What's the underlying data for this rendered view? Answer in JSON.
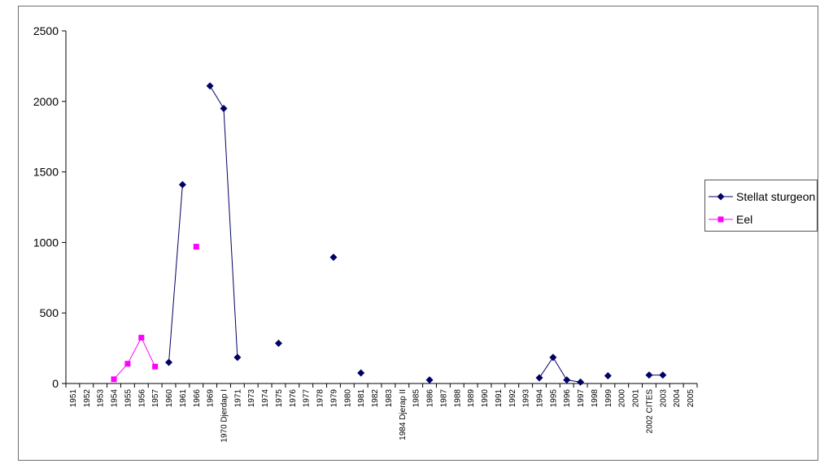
{
  "chart_data": {
    "type": "line",
    "categories": [
      "1951",
      "1952",
      "1953",
      "1954",
      "1955",
      "1956",
      "1957",
      "1960",
      "1961",
      "1966",
      "1969",
      "1970 Djerdap I",
      "1971",
      "1973",
      "1974",
      "1975",
      "1976",
      "1977",
      "1978",
      "1979",
      "1980",
      "1981",
      "1982",
      "1983",
      "1984 Djerap II",
      "1985",
      "1986",
      "1987",
      "1988",
      "1989",
      "1990",
      "1991",
      "1992",
      "1993",
      "1994",
      "1995",
      "1996",
      "1997",
      "1998",
      "1999",
      "2000",
      "2001",
      "2002 CITES",
      "2003",
      "2004",
      "2005"
    ],
    "ylim": [
      0,
      2500
    ],
    "yticks": [
      0,
      500,
      1000,
      1500,
      2000,
      2500
    ],
    "grid": false,
    "legend_position": "right",
    "series": [
      {
        "name": "Stellat sturgeon",
        "color": "#000066",
        "marker": "diamond",
        "values": [
          null,
          null,
          null,
          null,
          null,
          null,
          null,
          150,
          1410,
          null,
          2110,
          1950,
          185,
          null,
          null,
          285,
          null,
          null,
          null,
          895,
          null,
          75,
          null,
          null,
          null,
          null,
          25,
          null,
          null,
          null,
          null,
          null,
          null,
          null,
          40,
          185,
          25,
          10,
          null,
          55,
          null,
          null,
          60,
          60,
          null,
          null
        ]
      },
      {
        "name": "Eel",
        "color": "#ff00ff",
        "marker": "square",
        "values": [
          null,
          null,
          null,
          30,
          140,
          325,
          120,
          null,
          null,
          970,
          null,
          null,
          null,
          null,
          null,
          null,
          null,
          null,
          null,
          null,
          null,
          null,
          null,
          null,
          null,
          null,
          null,
          null,
          null,
          null,
          null,
          null,
          null,
          null,
          null,
          null,
          null,
          null,
          null,
          null,
          null,
          null,
          null,
          null,
          null,
          null
        ]
      }
    ]
  },
  "legend": {
    "items": [
      {
        "label": "Stellat sturgeon"
      },
      {
        "label": "Eel"
      }
    ]
  }
}
